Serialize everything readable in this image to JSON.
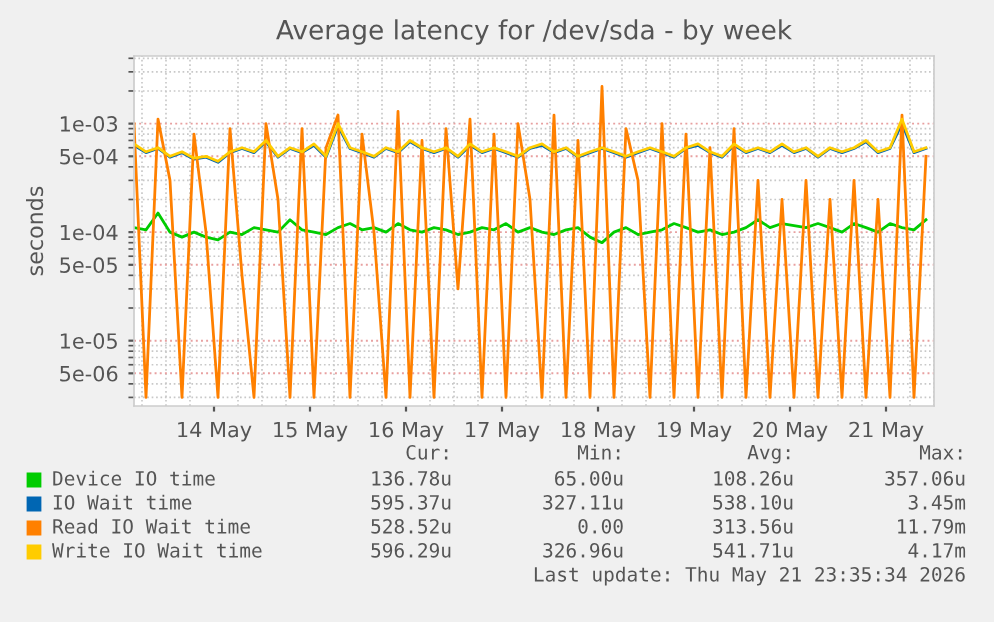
{
  "chart_data": {
    "type": "line",
    "title": "Average latency for /dev/sda - by week",
    "ylabel": "seconds",
    "log": "y",
    "grid": true,
    "legend": "bottom",
    "xlim": [
      "2026-05-13T16:00",
      "2026-05-22T00:00"
    ],
    "xticks": [
      {
        "value": "2026-05-14T12:00",
        "label": "14 May"
      },
      {
        "value": "2026-05-15T12:00",
        "label": "15 May"
      },
      {
        "value": "2026-05-16T12:00",
        "label": "16 May"
      },
      {
        "value": "2026-05-17T12:00",
        "label": "17 May"
      },
      {
        "value": "2026-05-18T12:00",
        "label": "18 May"
      },
      {
        "value": "2026-05-19T12:00",
        "label": "19 May"
      },
      {
        "value": "2026-05-20T12:00",
        "label": "20 May"
      },
      {
        "value": "2026-05-21T12:00",
        "label": "21 May"
      }
    ],
    "ylim": [
      2.5e-06,
      0.0042
    ],
    "yticks": [
      {
        "value": 5e-06,
        "label": "5e-06"
      },
      {
        "value": 1e-05,
        "label": "1e-05"
      },
      {
        "value": 5e-05,
        "label": "5e-05"
      },
      {
        "value": 0.0001,
        "label": "1e-04"
      },
      {
        "value": 0.0005,
        "label": "5e-04"
      },
      {
        "value": 0.001,
        "label": "1e-03"
      }
    ],
    "x": [
      "2026-05-13T16:00",
      "2026-05-13T19:00",
      "2026-05-13T22:00",
      "2026-05-14T01:00",
      "2026-05-14T04:00",
      "2026-05-14T07:00",
      "2026-05-14T10:00",
      "2026-05-14T13:00",
      "2026-05-14T16:00",
      "2026-05-14T19:00",
      "2026-05-14T22:00",
      "2026-05-15T01:00",
      "2026-05-15T04:00",
      "2026-05-15T07:00",
      "2026-05-15T10:00",
      "2026-05-15T13:00",
      "2026-05-15T16:00",
      "2026-05-15T19:00",
      "2026-05-15T22:00",
      "2026-05-16T01:00",
      "2026-05-16T04:00",
      "2026-05-16T07:00",
      "2026-05-16T10:00",
      "2026-05-16T13:00",
      "2026-05-16T16:00",
      "2026-05-16T19:00",
      "2026-05-16T22:00",
      "2026-05-17T01:00",
      "2026-05-17T04:00",
      "2026-05-17T07:00",
      "2026-05-17T10:00",
      "2026-05-17T13:00",
      "2026-05-17T16:00",
      "2026-05-17T19:00",
      "2026-05-17T22:00",
      "2026-05-18T01:00",
      "2026-05-18T04:00",
      "2026-05-18T07:00",
      "2026-05-18T10:00",
      "2026-05-18T13:00",
      "2026-05-18T16:00",
      "2026-05-18T19:00",
      "2026-05-18T22:00",
      "2026-05-19T01:00",
      "2026-05-19T04:00",
      "2026-05-19T07:00",
      "2026-05-19T10:00",
      "2026-05-19T13:00",
      "2026-05-19T16:00",
      "2026-05-19T19:00",
      "2026-05-19T22:00",
      "2026-05-20T01:00",
      "2026-05-20T04:00",
      "2026-05-20T07:00",
      "2026-05-20T10:00",
      "2026-05-20T13:00",
      "2026-05-20T16:00",
      "2026-05-20T19:00",
      "2026-05-20T22:00",
      "2026-05-21T01:00",
      "2026-05-21T04:00",
      "2026-05-21T07:00",
      "2026-05-21T10:00",
      "2026-05-21T13:00",
      "2026-05-21T16:00",
      "2026-05-21T19:00",
      "2026-05-21T22:00"
    ],
    "series": [
      {
        "name": "Device IO time",
        "color": "#00cc00",
        "values": [
          0.00011,
          0.000105,
          0.00015,
          0.0001,
          9e-05,
          0.0001,
          9e-05,
          8.5e-05,
          0.0001,
          9.5e-05,
          0.00011,
          0.000105,
          0.0001,
          0.00013,
          0.000105,
          0.0001,
          9.5e-05,
          0.00011,
          0.00012,
          0.000105,
          0.00011,
          0.0001,
          0.00012,
          0.000105,
          0.0001,
          0.00011,
          0.000105,
          9.5e-05,
          0.0001,
          0.00011,
          0.000105,
          0.00012,
          0.0001,
          0.00011,
          0.0001,
          9.5e-05,
          0.000105,
          0.00011,
          9e-05,
          8e-05,
          0.0001,
          0.00011,
          9.5e-05,
          0.0001,
          0.000105,
          0.00012,
          0.00011,
          0.0001,
          0.000105,
          9.5e-05,
          0.0001,
          0.00011,
          0.00013,
          0.00011,
          0.00012,
          0.000115,
          0.00011,
          0.00012,
          0.00011,
          0.0001,
          0.00012,
          0.00011,
          0.0001,
          0.00012,
          0.00011,
          0.000105,
          0.00013
        ]
      },
      {
        "name": "IO Wait time",
        "color": "#0066b3",
        "values": [
          0.00063,
          0.00054,
          0.00059,
          0.00049,
          0.00054,
          0.00047,
          0.00049,
          0.00044,
          0.00054,
          0.00059,
          0.00054,
          0.00068,
          0.00049,
          0.00059,
          0.00054,
          0.00063,
          0.00049,
          0.00095,
          0.00059,
          0.00054,
          0.00049,
          0.00059,
          0.00054,
          0.00068,
          0.00059,
          0.00054,
          0.00059,
          0.00049,
          0.00063,
          0.00054,
          0.00059,
          0.00054,
          0.00049,
          0.00059,
          0.00063,
          0.00054,
          0.00059,
          0.00049,
          0.00054,
          0.00059,
          0.00054,
          0.00049,
          0.00054,
          0.00059,
          0.00054,
          0.00049,
          0.00059,
          0.00063,
          0.00054,
          0.00049,
          0.00063,
          0.00054,
          0.00059,
          0.00054,
          0.00063,
          0.00054,
          0.00059,
          0.00049,
          0.00059,
          0.00054,
          0.00059,
          0.00068,
          0.00054,
          0.00059,
          0.001,
          0.00054,
          0.00059
        ]
      },
      {
        "name": "Read IO Wait time",
        "color": "#ff8000",
        "values": [
          0.001,
          3e-06,
          0.0011,
          0.0003,
          3e-06,
          0.0008,
          0.0001,
          3e-06,
          0.0009,
          4e-05,
          3e-06,
          0.001,
          0.0002,
          3e-06,
          0.0009,
          3e-06,
          0.0006,
          0.0012,
          3e-06,
          0.0008,
          0.0001,
          3e-06,
          0.0013,
          3e-06,
          0.0007,
          3e-06,
          0.0009,
          3e-05,
          0.0011,
          3e-06,
          0.0008,
          3e-06,
          0.001,
          0.0002,
          3e-06,
          0.0012,
          3e-06,
          0.0007,
          3e-06,
          0.0022,
          3e-06,
          0.0009,
          0.0003,
          3e-06,
          0.001,
          3e-06,
          0.0008,
          3e-06,
          0.0006,
          3e-06,
          0.0009,
          3e-06,
          0.0003,
          3e-06,
          0.0002,
          3e-06,
          0.0003,
          3e-06,
          0.0002,
          3e-06,
          0.0003,
          3e-06,
          0.0002,
          3e-06,
          0.0012,
          3e-06,
          0.0005
        ]
      },
      {
        "name": "Write IO Wait time",
        "color": "#ffcc00",
        "values": [
          0.00065,
          0.00055,
          0.0006,
          0.0005,
          0.00055,
          0.00048,
          0.0005,
          0.00045,
          0.00055,
          0.0006,
          0.00055,
          0.0007,
          0.0005,
          0.0006,
          0.00055,
          0.00065,
          0.0005,
          0.001,
          0.0006,
          0.00055,
          0.0005,
          0.0006,
          0.00055,
          0.0007,
          0.0006,
          0.00055,
          0.0006,
          0.0005,
          0.00065,
          0.00055,
          0.0006,
          0.00055,
          0.0005,
          0.0006,
          0.00065,
          0.00055,
          0.0006,
          0.0005,
          0.00055,
          0.0006,
          0.00055,
          0.0005,
          0.00055,
          0.0006,
          0.00055,
          0.0005,
          0.0006,
          0.00065,
          0.00055,
          0.0005,
          0.00065,
          0.00055,
          0.0006,
          0.00055,
          0.00065,
          0.00055,
          0.0006,
          0.0005,
          0.0006,
          0.00055,
          0.0006,
          0.0007,
          0.00055,
          0.0006,
          0.0011,
          0.00055,
          0.0006
        ]
      }
    ],
    "annotations": [
      "Cur:",
      "Min:",
      "Avg:",
      "Max:",
      "136.78u",
      "65.00u",
      "108.26u",
      "357.06u",
      "595.37u",
      "327.11u",
      "538.10u",
      "3.45m",
      "528.52u",
      "0.00",
      "313.56u",
      "11.79m",
      "596.29u",
      "326.96u",
      "541.71u",
      "4.17m",
      "Last update: Thu May 21 23:35:34 2026"
    ]
  }
}
